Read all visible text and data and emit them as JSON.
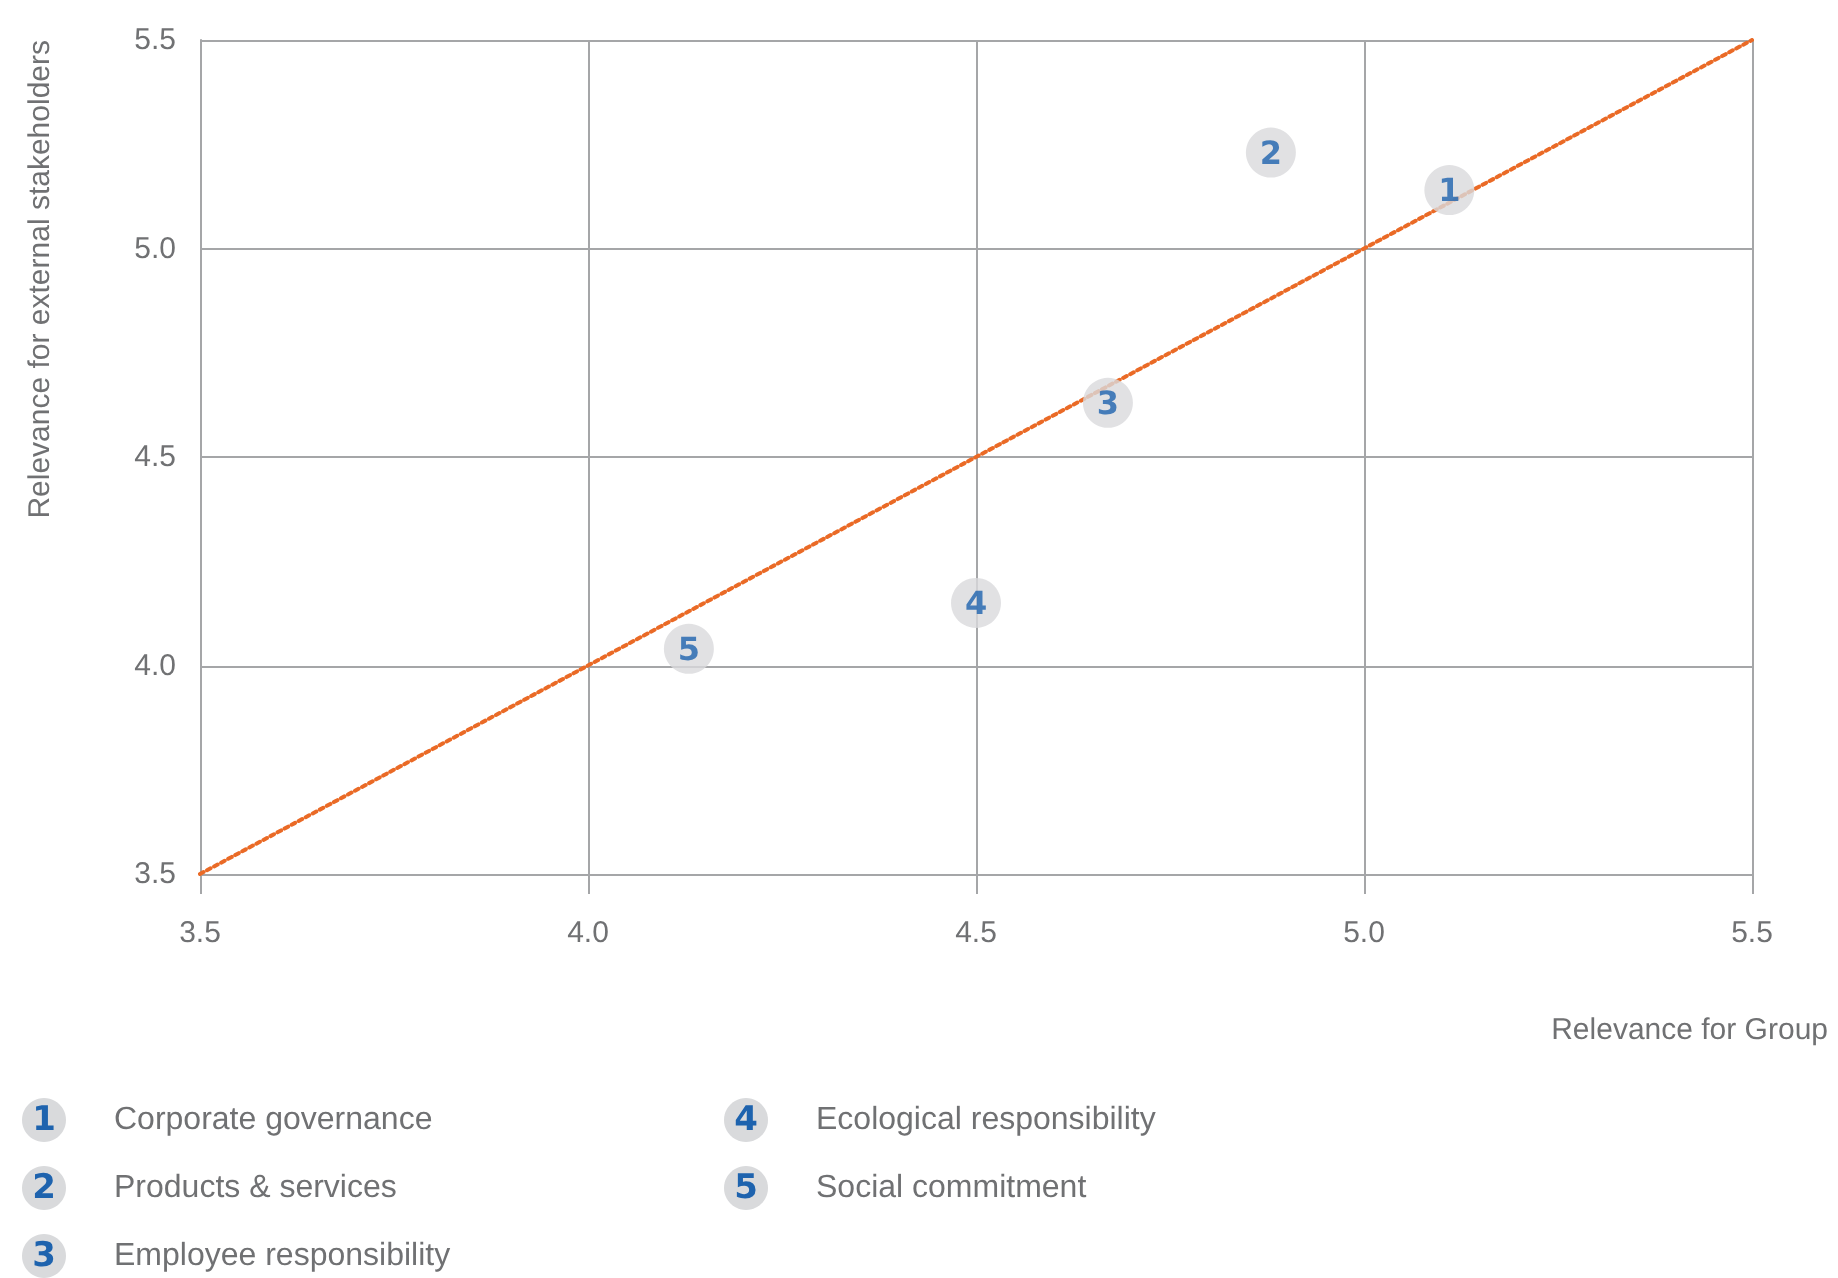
{
  "chart_data": {
    "type": "scatter",
    "xlabel": "Relevance for Group",
    "ylabel": "Relevance for external stakeholders",
    "xlim": [
      3.5,
      5.5
    ],
    "ylim": [
      3.5,
      5.5
    ],
    "xticks": [
      3.5,
      {
        "value": 4,
        "label": "4.0"
      },
      4.5,
      {
        "value": 5,
        "label": "5.0"
      },
      5.5
    ],
    "yticks": [
      3.5,
      {
        "value": 4,
        "label": "4.0"
      },
      4.5,
      {
        "value": 5,
        "label": "5.0"
      },
      5.5
    ],
    "grid": true,
    "legend": "bottom",
    "marker": "circle",
    "annotations": [
      {
        "text": "1",
        "x": 5.11,
        "y": 5.14
      },
      {
        "text": "2",
        "x": 4.88,
        "y": 5.23
      },
      {
        "text": "3",
        "x": 4.67,
        "y": 4.63
      },
      {
        "text": "4",
        "x": 4.5,
        "y": 4.15
      },
      {
        "text": "5",
        "x": 4.13,
        "y": 4.04
      }
    ],
    "series": [
      {
        "name": "Corporate governance",
        "color": "#d9dadc",
        "x": [
          5.11
        ],
        "values": [
          5.14
        ]
      },
      {
        "name": "Products & services",
        "color": "#d9dadc",
        "x": [
          4.88
        ],
        "values": [
          5.23
        ]
      },
      {
        "name": "Employee responsibility",
        "color": "#d9dadc",
        "x": [
          4.67
        ],
        "values": [
          4.63
        ]
      },
      {
        "name": "Ecological responsibility",
        "color": "#d9dadc",
        "x": [
          4.5
        ],
        "values": [
          4.15
        ]
      },
      {
        "name": "Social commitment",
        "color": "#d9dadc",
        "x": [
          4.13
        ],
        "values": [
          4.04
        ]
      },
      {
        "type": "line",
        "color": "#ea6a26",
        "x": [
          3.5,
          5.5
        ],
        "values": [
          3.5,
          5.5
        ],
        "line_style": "dotted",
        "marker": "none"
      }
    ]
  }
}
